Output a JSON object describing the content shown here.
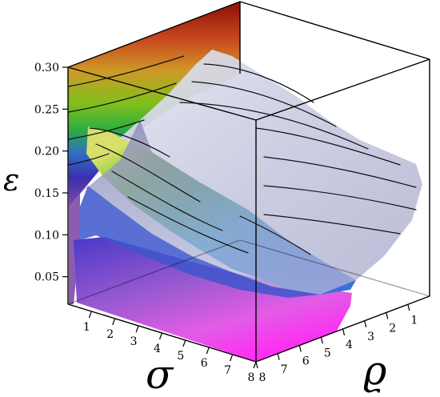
{
  "chart_data": {
    "type": "surface3d",
    "axes": {
      "vertical": {
        "label": "ε",
        "ticks": [
          "0.05",
          "0.10",
          "0.15",
          "0.20",
          "0.25",
          "0.30"
        ],
        "range": [
          0,
          0.3
        ]
      },
      "front": {
        "label": "σ",
        "ticks": [
          "1",
          "2",
          "3",
          "4",
          "5",
          "6",
          "7",
          "8"
        ],
        "range": [
          0,
          8
        ]
      },
      "side": {
        "label": "ϱ",
        "ticks": [
          "1",
          "2",
          "3",
          "4",
          "5",
          "6",
          "7",
          "8"
        ],
        "range": [
          0,
          8
        ]
      }
    },
    "surfaces": [
      {
        "coloring": "rainbow"
      },
      {
        "coloring": "translucent-gray"
      }
    ],
    "bounding_box": true,
    "colors": {
      "box_line": "#000000",
      "contour": "#111111",
      "gray_surface": "#c7c9e0",
      "magenta": "#ff00ff",
      "back_red": "#8a0f06"
    }
  }
}
